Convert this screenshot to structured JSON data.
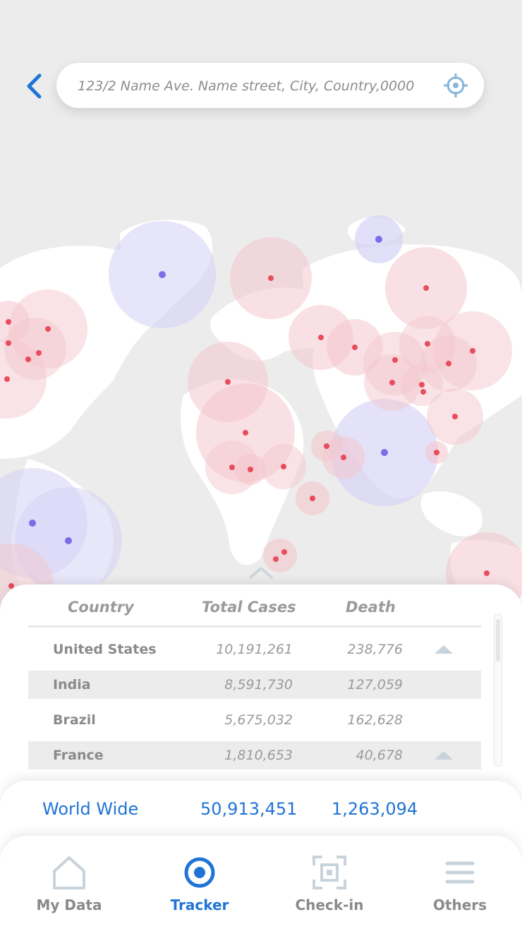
{
  "search": {
    "placeholder": "123/2 Name Ave. Name street, City, Country,0000",
    "icons": [
      "back-chevron-icon",
      "crosshair-icon"
    ]
  },
  "table": {
    "headers": {
      "country": "Country",
      "cases": "Total Cases",
      "death": "Death"
    },
    "rows": [
      {
        "country": "United States",
        "cases": "10,191,261",
        "death": "238,776",
        "trend": "up"
      },
      {
        "country": "India",
        "cases": "8,591,730",
        "death": "127,059",
        "trend": ""
      },
      {
        "country": "Brazil",
        "cases": "5,675,032",
        "death": "162,628",
        "trend": ""
      },
      {
        "country": "France",
        "cases": "1,810,653",
        "death": "40,678",
        "trend": "up"
      }
    ]
  },
  "world": {
    "label": "World Wide",
    "cases": "50,913,451",
    "death": "1,263,094"
  },
  "nav": {
    "items": [
      {
        "label": "My Data",
        "icon": "home-icon"
      },
      {
        "label": "Tracker",
        "icon": "target-icon"
      },
      {
        "label": "Check-in",
        "icon": "scan-icon"
      },
      {
        "label": "Others",
        "icon": "menu-icon"
      }
    ],
    "active": "Tracker"
  },
  "colors": {
    "accent": "#1f74d6",
    "hotspot_red": "#e94c5b",
    "hotspot_purple": "#7b6ce8"
  }
}
